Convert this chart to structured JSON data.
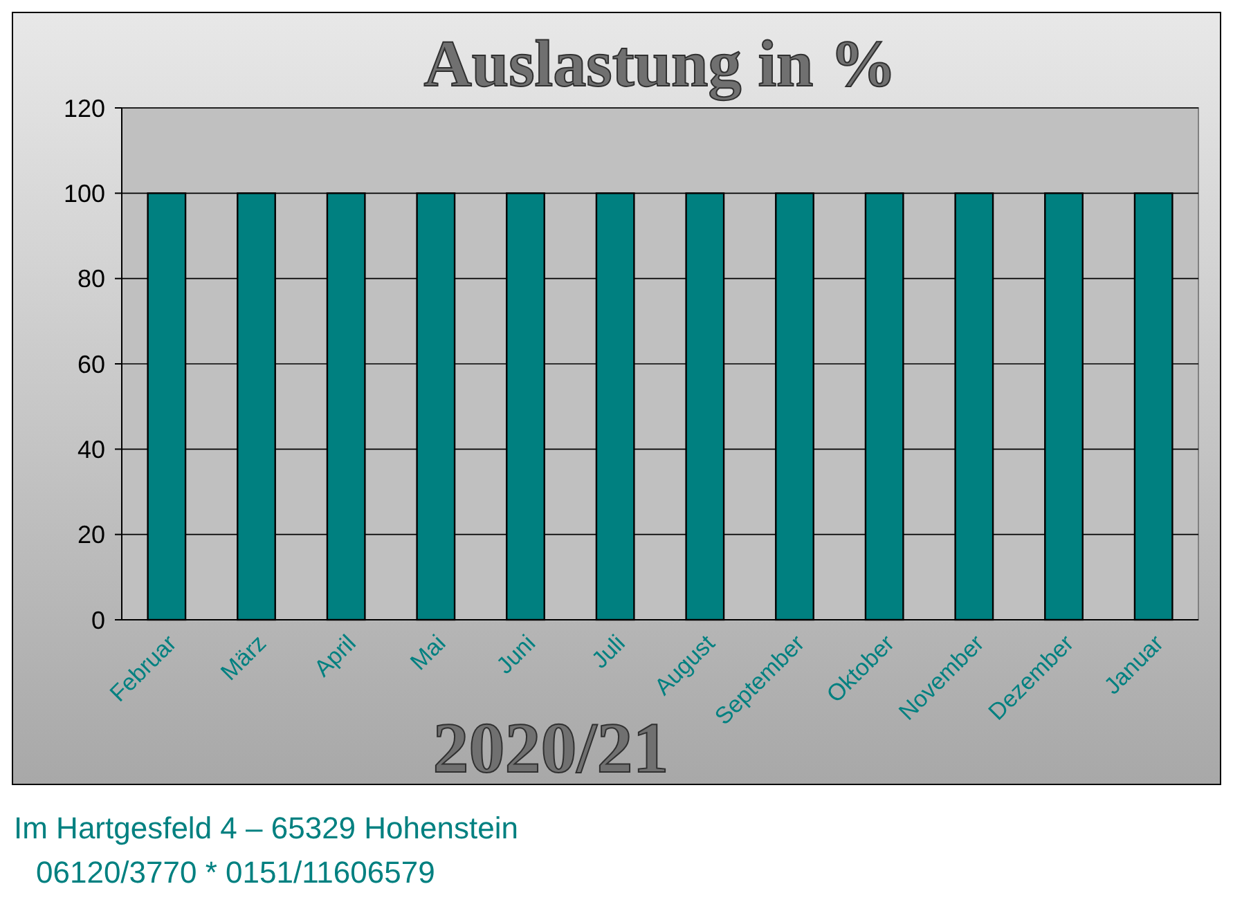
{
  "chart_data": {
    "type": "bar",
    "title": "Auslastung in %",
    "subtitle": "2020/21",
    "categories": [
      "Februar",
      "März",
      "April",
      "Mai",
      "Juni",
      "Juli",
      "August",
      "September",
      "Oktober",
      "November",
      "Dezember",
      "Januar"
    ],
    "values": [
      100,
      100,
      100,
      100,
      100,
      100,
      100,
      100,
      100,
      100,
      100,
      100
    ],
    "color": "#008080",
    "ylim": [
      0,
      120
    ],
    "yticks": [
      0,
      20,
      40,
      60,
      80,
      100,
      120
    ],
    "grid": "y",
    "annotations": [
      "Im Hartgesfeld 4 – 65329 Hohenstein",
      "06120/3770 * 0151/11606579"
    ]
  }
}
